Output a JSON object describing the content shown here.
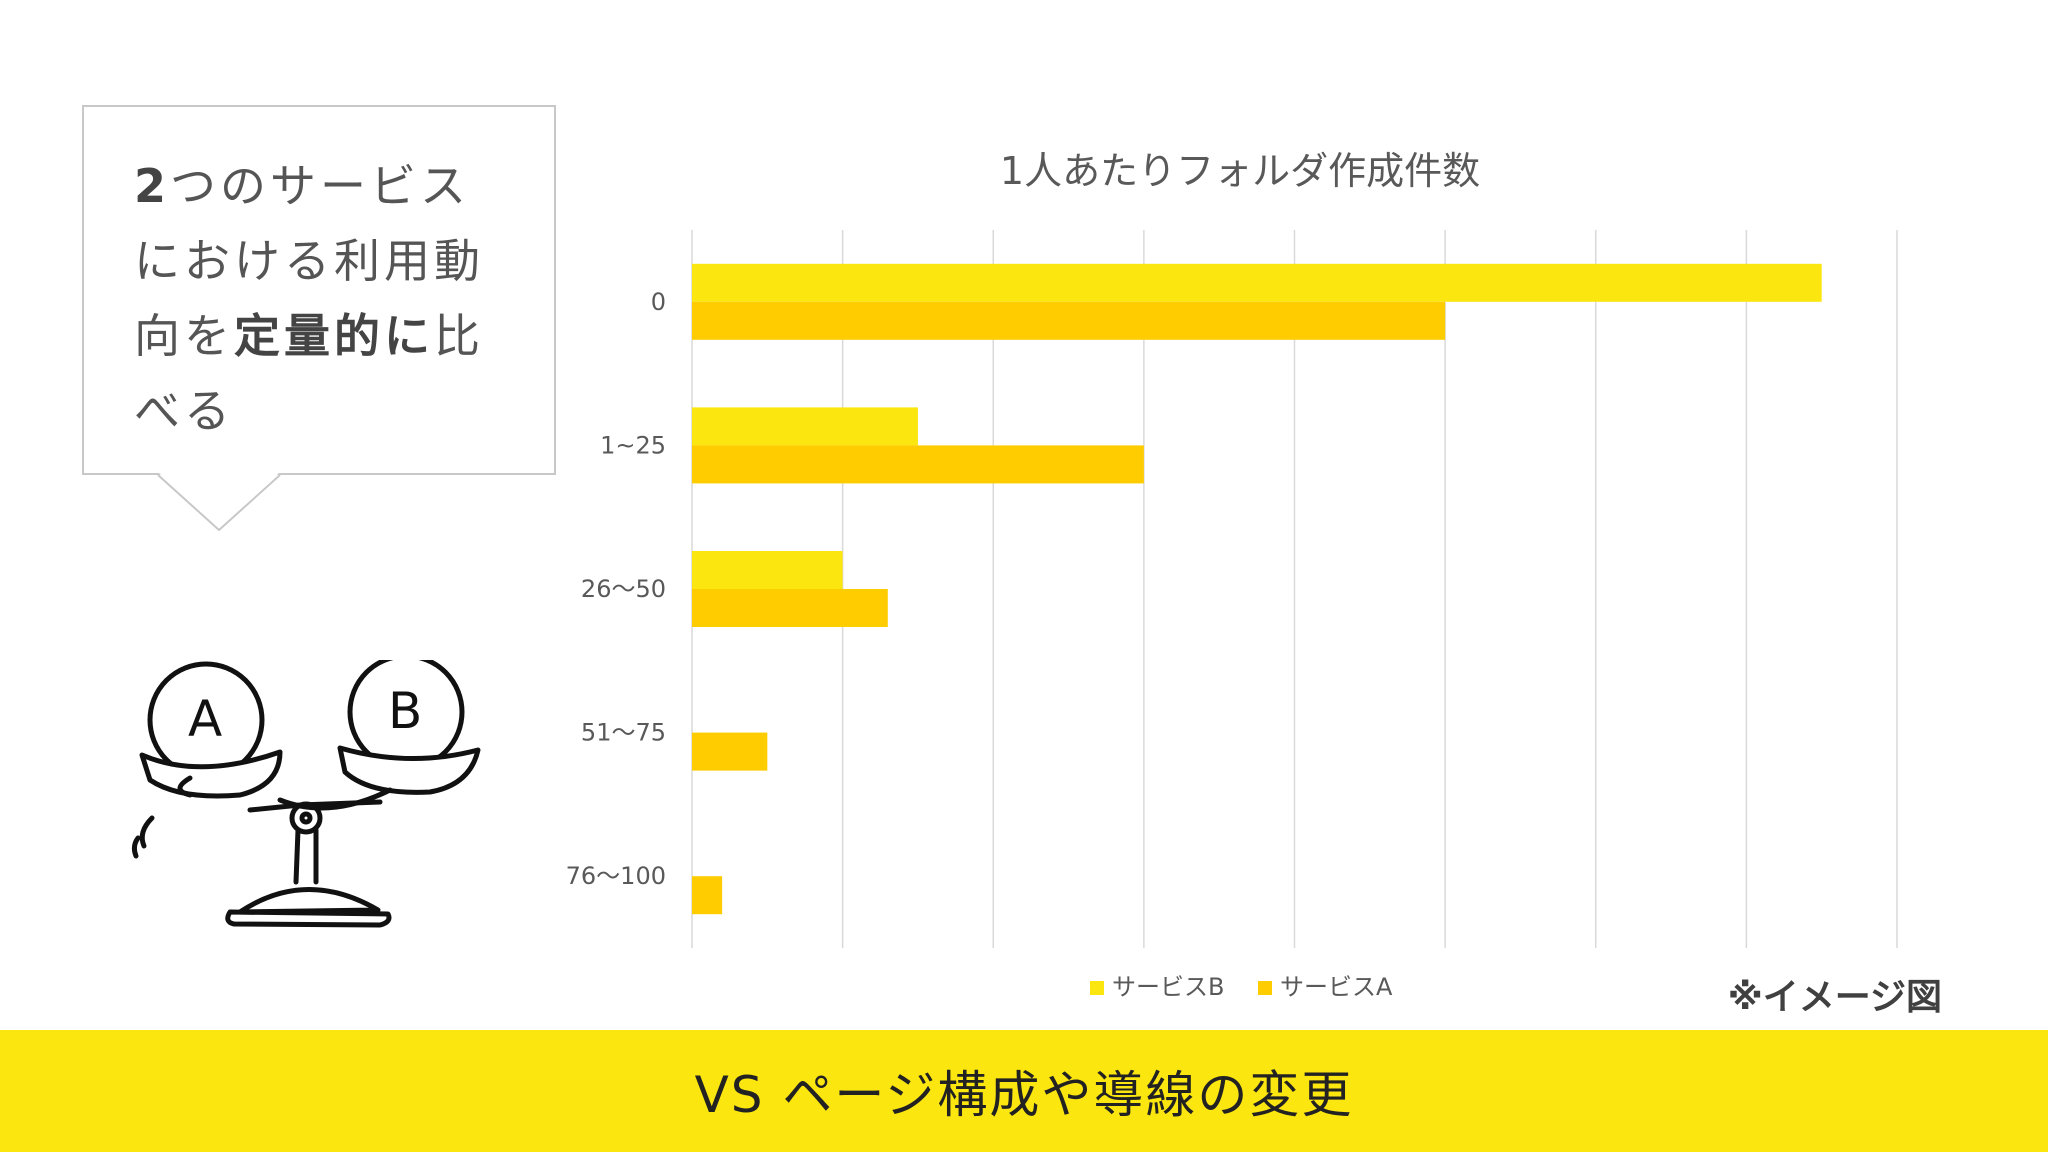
{
  "callout": {
    "line1_lead": "2",
    "line1_rest": "つのサービス",
    "line2": "における利用動",
    "line3_a": "向を",
    "line3_bold": "定量的に",
    "line3_b": "比",
    "line4": "べる"
  },
  "illustration": {
    "icon": "balance-scale-icon",
    "left_label": "A",
    "right_label": "B"
  },
  "chart_data": {
    "type": "bar",
    "orientation": "horizontal",
    "title": "1人あたりフォルダ作成件数",
    "categories": [
      "0",
      "1~25",
      "26〜50",
      "51〜75",
      "76〜100"
    ],
    "series": [
      {
        "name": "サービスB",
        "color": "#fbe60f",
        "values": [
          75,
          15,
          10,
          0,
          0
        ]
      },
      {
        "name": "サービスA",
        "color": "#ffcc00",
        "values": [
          50,
          30,
          13,
          5,
          2
        ]
      }
    ],
    "xlim": [
      0,
      80
    ],
    "x_gridlines": [
      0,
      10,
      20,
      30,
      40,
      50,
      60,
      70,
      80
    ],
    "x_tick_labels_shown": false,
    "grid": true,
    "legend": {
      "placement": "bottom"
    }
  },
  "note": "※イメージ図",
  "footer": {
    "text": "VS ページ構成や導線の変更"
  },
  "colors": {
    "accent_yellow": "#fbe60f",
    "bar_a": "#ffcc00",
    "bar_b": "#fbe60f",
    "grid": "#d9d9d9"
  }
}
